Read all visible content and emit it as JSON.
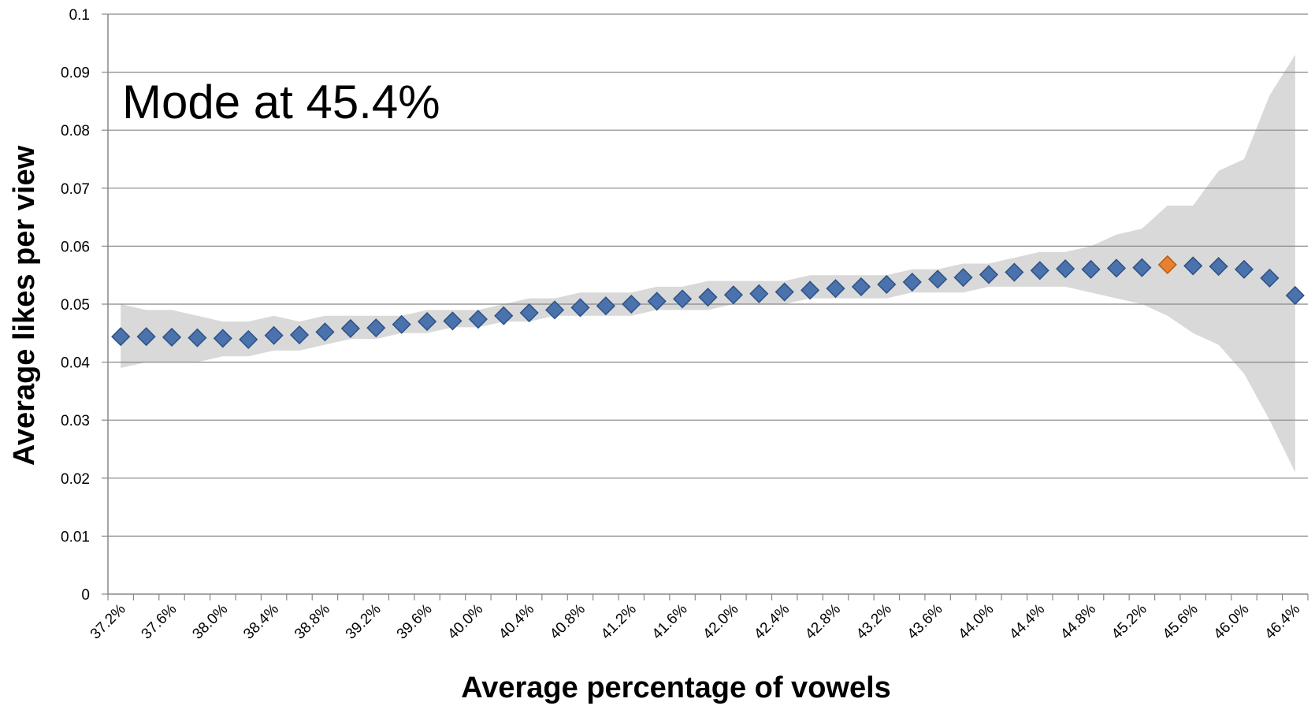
{
  "chart_data": {
    "type": "scatter",
    "annotation": "Mode at 45.4%",
    "xlabel": "Average percentage of vowels",
    "ylabel": "Average likes per view",
    "ylim": [
      0,
      0.1
    ],
    "y_ticks": [
      "0",
      "0.01",
      "0.02",
      "0.03",
      "0.04",
      "0.05",
      "0.06",
      "0.07",
      "0.08",
      "0.09",
      "0.1"
    ],
    "x_tick_labels": [
      "37.2%",
      "37.6%",
      "38.0%",
      "38.4%",
      "38.8%",
      "39.2%",
      "39.6%",
      "40.0%",
      "40.4%",
      "40.8%",
      "41.2%",
      "41.6%",
      "42.0%",
      "42.4%",
      "42.8%",
      "43.2%",
      "43.6%",
      "44.0%",
      "44.4%",
      "44.8%",
      "45.2%",
      "45.6%",
      "46.0%",
      "46.4%"
    ],
    "x": [
      "37.2%",
      "37.4%",
      "37.6%",
      "37.8%",
      "38.0%",
      "38.2%",
      "38.4%",
      "38.6%",
      "38.8%",
      "39.0%",
      "39.2%",
      "39.4%",
      "39.6%",
      "39.8%",
      "40.0%",
      "40.2%",
      "40.4%",
      "40.6%",
      "40.8%",
      "41.0%",
      "41.2%",
      "41.4%",
      "41.6%",
      "41.8%",
      "42.0%",
      "42.2%",
      "42.4%",
      "42.6%",
      "42.8%",
      "43.0%",
      "43.2%",
      "43.4%",
      "43.6%",
      "43.8%",
      "44.0%",
      "44.2%",
      "44.4%",
      "44.6%",
      "44.8%",
      "45.0%",
      "45.2%",
      "45.4%",
      "45.6%",
      "45.8%",
      "46.0%",
      "46.2%",
      "46.4%"
    ],
    "values": [
      0.0444,
      0.0444,
      0.0443,
      0.0442,
      0.0441,
      0.0439,
      0.0446,
      0.0447,
      0.0452,
      0.0458,
      0.0459,
      0.0465,
      0.047,
      0.0471,
      0.0474,
      0.048,
      0.0485,
      0.049,
      0.0494,
      0.0497,
      0.05,
      0.0505,
      0.0509,
      0.0512,
      0.0516,
      0.0518,
      0.0521,
      0.0524,
      0.0527,
      0.053,
      0.0534,
      0.0538,
      0.0543,
      0.0546,
      0.0551,
      0.0555,
      0.0558,
      0.0561,
      0.056,
      0.0562,
      0.0563,
      0.0568,
      0.0566,
      0.0565,
      0.056,
      0.0545,
      0.0515
    ],
    "band_upper": [
      0.05,
      0.049,
      0.049,
      0.048,
      0.047,
      0.047,
      0.048,
      0.047,
      0.048,
      0.048,
      0.048,
      0.048,
      0.049,
      0.049,
      0.049,
      0.05,
      0.051,
      0.051,
      0.052,
      0.052,
      0.052,
      0.053,
      0.053,
      0.054,
      0.054,
      0.054,
      0.054,
      0.055,
      0.055,
      0.055,
      0.055,
      0.056,
      0.056,
      0.057,
      0.057,
      0.058,
      0.059,
      0.059,
      0.06,
      0.062,
      0.063,
      0.067,
      0.067,
      0.073,
      0.075,
      0.086,
      0.093
    ],
    "band_lower": [
      0.039,
      0.04,
      0.04,
      0.04,
      0.041,
      0.041,
      0.042,
      0.042,
      0.043,
      0.044,
      0.044,
      0.045,
      0.045,
      0.046,
      0.046,
      0.047,
      0.047,
      0.048,
      0.048,
      0.048,
      0.048,
      0.049,
      0.049,
      0.049,
      0.05,
      0.05,
      0.05,
      0.051,
      0.051,
      0.051,
      0.051,
      0.052,
      0.052,
      0.052,
      0.053,
      0.053,
      0.053,
      0.053,
      0.052,
      0.051,
      0.05,
      0.048,
      0.045,
      0.043,
      0.038,
      0.03,
      0.021
    ],
    "highlight_index": 41,
    "colors": {
      "marker": "#4a73ad",
      "marker_edge": "#2e5185",
      "highlight": "#e8802f",
      "band": "#d9d9d9",
      "grid": "#878787"
    },
    "grid": true,
    "legend": "none"
  }
}
